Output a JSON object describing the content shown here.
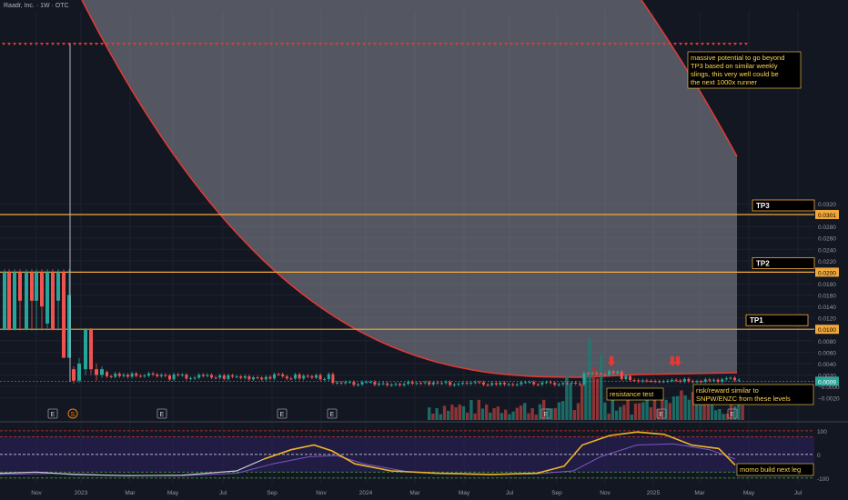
{
  "header": {
    "title": "Raadr, Inc. · 1W · OTC"
  },
  "colors": {
    "bg": "#131722",
    "grid": "#1e2230",
    "axis_text": "#9598a1",
    "up": "#26a69a",
    "down": "#ef5350",
    "level": "#f2a93b",
    "curve": "#e53935",
    "zone": "#8a8d96",
    "vol_up": "#1f7a72",
    "vol_down": "#a33a3a",
    "osc": "#f0b429",
    "osc_signal": "#7e57c2",
    "note_text": "#ffd54f"
  },
  "chart_data": [
    {
      "type": "candlestick",
      "title": "Raadr, Inc. · 1W · OTC",
      "y_ticks": [
        "0.0320",
        "0.0280",
        "0.0260",
        "0.0240",
        "0.0220",
        "0.0180",
        "0.0160",
        "0.0140",
        "0.0120",
        "0.0080",
        "0.0060",
        "0.0040",
        "0.0020",
        "−0.0000",
        "−0.0020"
      ],
      "y_tick_values": [
        0.032,
        0.028,
        0.026,
        0.024,
        0.022,
        0.018,
        0.016,
        0.014,
        0.012,
        0.008,
        0.006,
        0.004,
        0.002,
        0.0,
        -0.002
      ],
      "x_ticks": [
        "Nov",
        "2023",
        "Mar",
        "May",
        "Jul",
        "Sep",
        "Nov",
        "2024",
        "Mar",
        "May",
        "Jul",
        "Sep",
        "Nov",
        "2025",
        "Mar",
        "May",
        "Jul"
      ],
      "ylim": [
        -0.0028,
        0.0334
      ],
      "price_levels": [
        {
          "label": "TP3",
          "value": 0.0301,
          "tag": "0.0301"
        },
        {
          "label": "TP2",
          "value": 0.02,
          "tag": "0.0200"
        },
        {
          "label": "TP1",
          "value": 0.01,
          "tag": "0.0100"
        }
      ],
      "last_price": {
        "value": 0.0009,
        "tag": "0.0009"
      },
      "annotations": [
        {
          "text": "massive potential to go beyond TP3 based on similar weekly slings, this very well could be the next 1000x runner"
        },
        {
          "text": "resistance test"
        },
        {
          "text": "risk/reward similar to SNPW/ENZC from these levels"
        }
      ],
      "event_markers": [
        "E",
        "S",
        "E",
        "E",
        "E",
        "E",
        "E",
        "E"
      ]
    },
    {
      "type": "line",
      "title": "",
      "y_ticks": [
        "100",
        "0",
        "-100"
      ],
      "y_tick_values": [
        100,
        0,
        -100
      ],
      "ylim": [
        -120,
        115
      ],
      "levels": [
        100,
        75,
        0,
        -75,
        -100
      ],
      "annotations": [
        {
          "text": "momo build next leg"
        }
      ]
    }
  ]
}
